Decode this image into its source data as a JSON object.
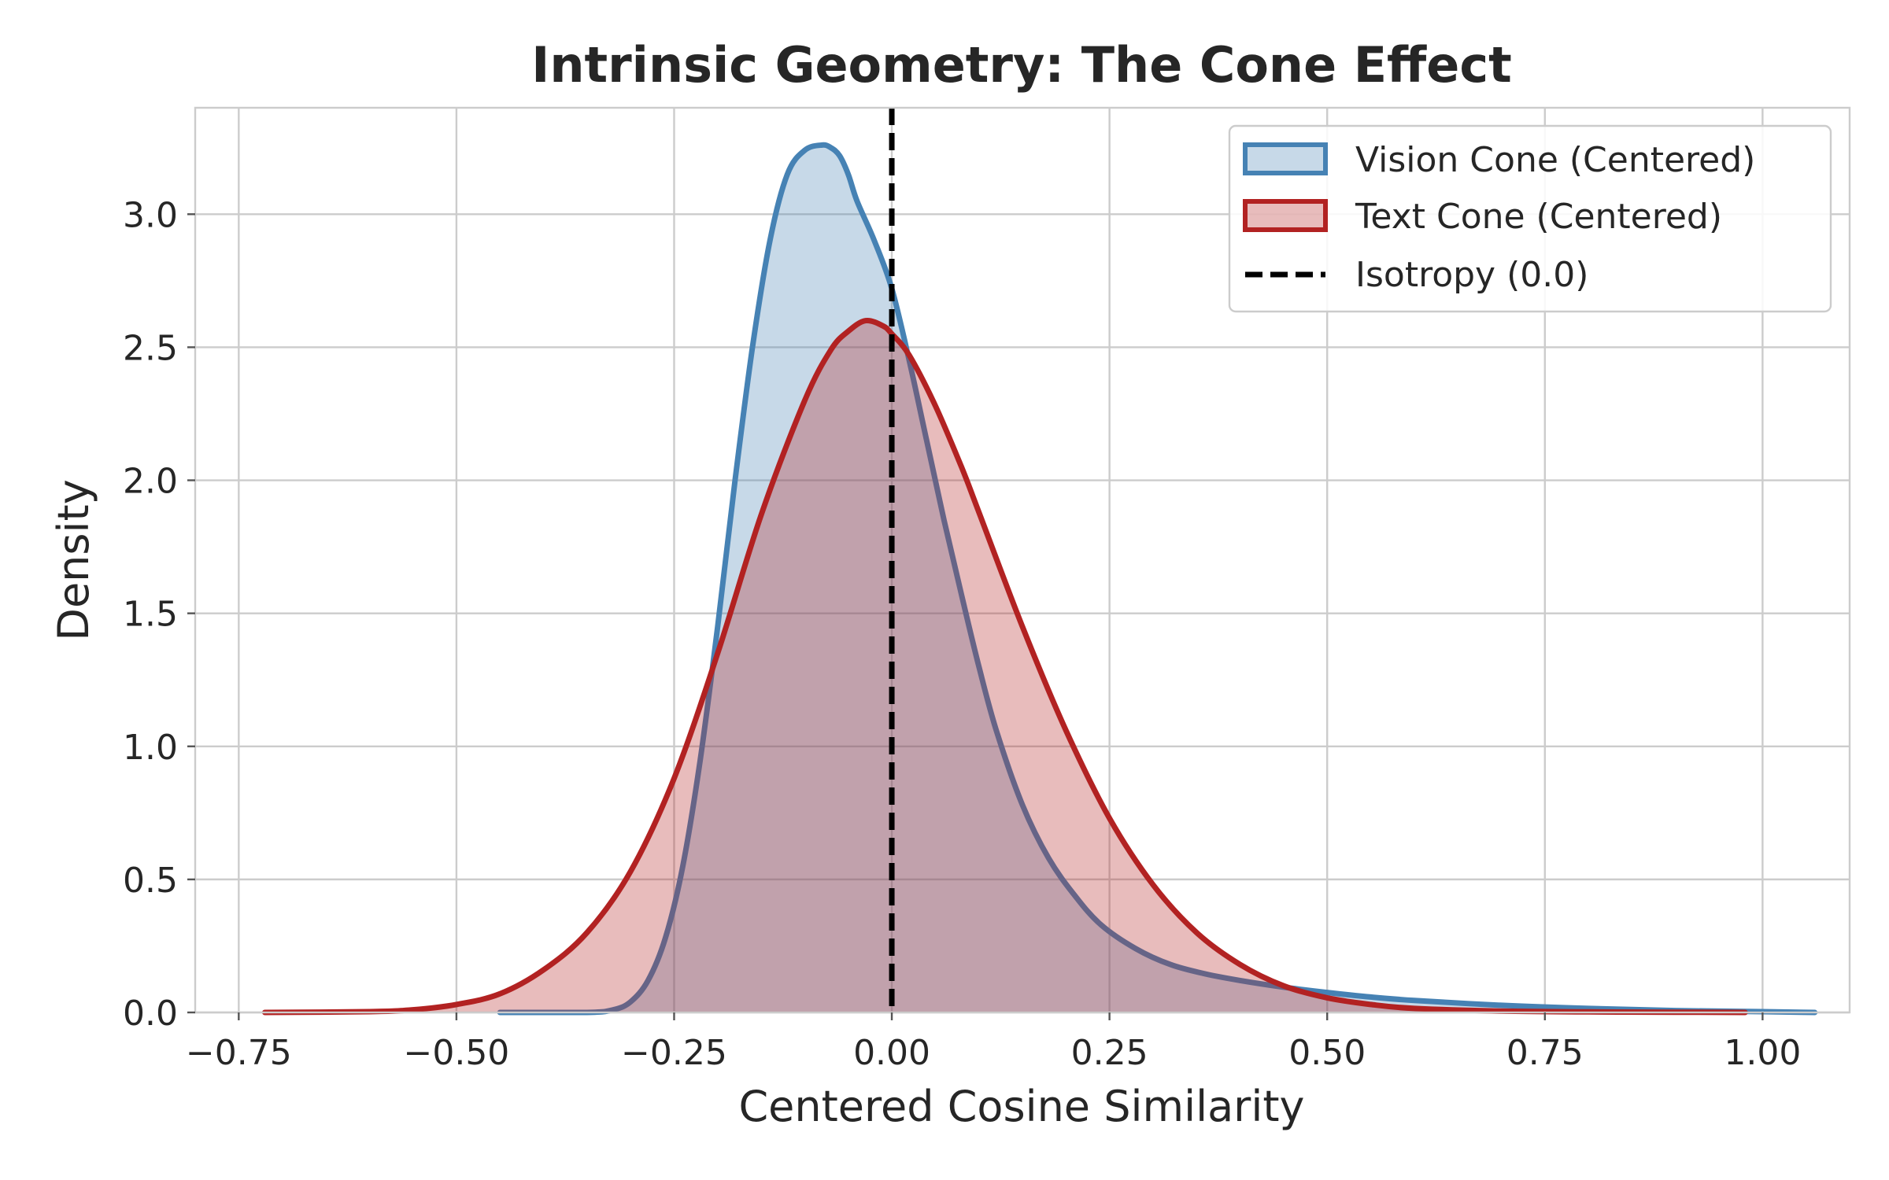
{
  "chart_data": {
    "type": "area",
    "title": "Intrinsic Geometry: The Cone Effect",
    "xlabel": "Centered Cosine Similarity",
    "ylabel": "Density",
    "xlim": [
      -0.8,
      1.1
    ],
    "ylim": [
      0,
      3.4
    ],
    "grid": true,
    "legend_position": "top-right",
    "x_ticks": [
      -0.75,
      -0.5,
      -0.25,
      0.0,
      0.25,
      0.5,
      0.75,
      1.0
    ],
    "x_tick_labels": [
      "−0.75",
      "−0.50",
      "−0.25",
      "0.00",
      "0.25",
      "0.50",
      "0.75",
      "1.00"
    ],
    "y_ticks": [
      0.0,
      0.5,
      1.0,
      1.5,
      2.0,
      2.5,
      3.0
    ],
    "y_tick_labels": [
      "0.0",
      "0.5",
      "1.0",
      "1.5",
      "2.0",
      "2.5",
      "3.0"
    ],
    "series": [
      {
        "name": "Vision Cone (Centered)",
        "color": "#4682b4",
        "fill_opacity": 0.3,
        "x": [
          -0.45,
          -0.35,
          -0.32,
          -0.3,
          -0.28,
          -0.26,
          -0.24,
          -0.22,
          -0.2,
          -0.18,
          -0.16,
          -0.14,
          -0.12,
          -0.1,
          -0.08,
          -0.07,
          -0.06,
          -0.05,
          -0.04,
          -0.02,
          0.0,
          0.02,
          0.04,
          0.06,
          0.08,
          0.1,
          0.12,
          0.15,
          0.18,
          0.21,
          0.24,
          0.28,
          0.32,
          0.36,
          0.4,
          0.45,
          0.5,
          0.55,
          0.6,
          0.7,
          0.8,
          0.9,
          1.0,
          1.06
        ],
        "y": [
          0.0,
          0.0,
          0.01,
          0.04,
          0.12,
          0.28,
          0.55,
          0.95,
          1.45,
          2.0,
          2.5,
          2.9,
          3.15,
          3.24,
          3.26,
          3.25,
          3.22,
          3.15,
          3.05,
          2.9,
          2.72,
          2.45,
          2.15,
          1.85,
          1.57,
          1.3,
          1.06,
          0.78,
          0.58,
          0.44,
          0.33,
          0.24,
          0.18,
          0.145,
          0.12,
          0.095,
          0.075,
          0.058,
          0.045,
          0.027,
          0.015,
          0.007,
          0.003,
          0.0
        ]
      },
      {
        "name": "Text Cone (Centered)",
        "color": "#b22222",
        "fill_opacity": 0.3,
        "x": [
          -0.72,
          -0.6,
          -0.55,
          -0.5,
          -0.45,
          -0.4,
          -0.35,
          -0.3,
          -0.25,
          -0.2,
          -0.15,
          -0.1,
          -0.07,
          -0.05,
          -0.03,
          -0.01,
          0.0,
          0.02,
          0.05,
          0.08,
          0.1,
          0.15,
          0.2,
          0.25,
          0.3,
          0.35,
          0.4,
          0.45,
          0.5,
          0.55,
          0.6,
          0.7,
          0.8,
          0.9,
          0.98
        ],
        "y": [
          0.0,
          0.003,
          0.01,
          0.03,
          0.07,
          0.16,
          0.3,
          0.53,
          0.88,
          1.35,
          1.87,
          2.3,
          2.49,
          2.56,
          2.6,
          2.58,
          2.55,
          2.47,
          2.28,
          2.05,
          1.88,
          1.45,
          1.06,
          0.73,
          0.48,
          0.3,
          0.18,
          0.1,
          0.055,
          0.03,
          0.015,
          0.005,
          0.002,
          0.001,
          0.0
        ]
      }
    ],
    "reference_line": {
      "name": "Isotropy (0.0)",
      "x": 0.0,
      "color": "#000000",
      "style": "dashed"
    }
  }
}
